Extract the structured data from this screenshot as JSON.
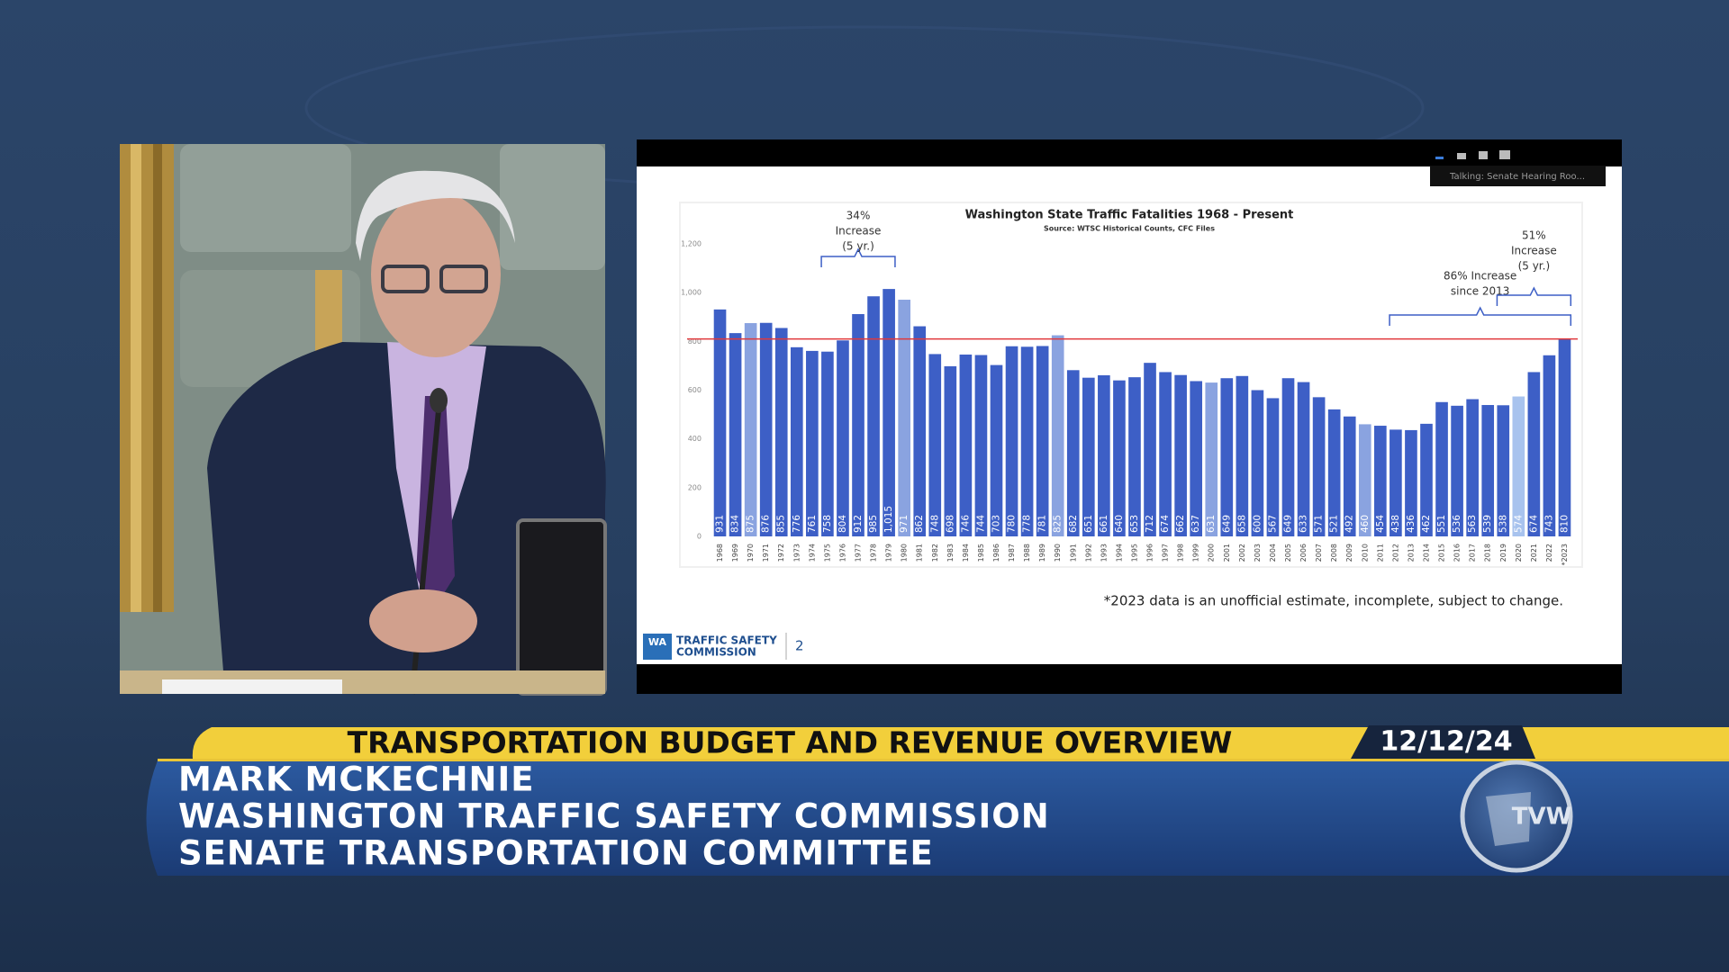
{
  "chart_data": {
    "type": "bar",
    "title": "Washington State Traffic Fatalities 1968 - Present",
    "subtitle": "Source: WTSC Historical Counts, CFC Files",
    "categories": [
      "1968",
      "1969",
      "1970",
      "1971",
      "1972",
      "1973",
      "1974",
      "1975",
      "1976",
      "1977",
      "1978",
      "1979",
      "1980",
      "1981",
      "1982",
      "1983",
      "1984",
      "1985",
      "1986",
      "1987",
      "1988",
      "1989",
      "1990",
      "1991",
      "1992",
      "1993",
      "1994",
      "1995",
      "1996",
      "1997",
      "1998",
      "1999",
      "2000",
      "2001",
      "2002",
      "2003",
      "2004",
      "2005",
      "2006",
      "2007",
      "2008",
      "2009",
      "2010",
      "2011",
      "2012",
      "2013",
      "2014",
      "2015",
      "2016",
      "2017",
      "2018",
      "2019",
      "2020",
      "2021",
      "2022",
      "*2023"
    ],
    "values": [
      931,
      834,
      875,
      876,
      855,
      776,
      761,
      758,
      804,
      912,
      985,
      1015,
      971,
      862,
      748,
      698,
      746,
      744,
      703,
      780,
      778,
      781,
      825,
      682,
      651,
      661,
      640,
      653,
      712,
      674,
      662,
      637,
      631,
      649,
      658,
      600,
      567,
      649,
      633,
      571,
      521,
      492,
      460,
      454,
      438,
      436,
      462,
      551,
      536,
      563,
      539,
      538,
      574,
      674,
      743,
      810
    ],
    "value_labels": [
      "931",
      "834",
      "875",
      "876",
      "855",
      "776",
      "761",
      "758",
      "804",
      "912",
      "985",
      "1,015",
      "971",
      "862",
      "748",
      "698",
      "746",
      "744",
      "703",
      "780",
      "778",
      "781",
      "825",
      "682",
      "651",
      "661",
      "640",
      "653",
      "712",
      "674",
      "662",
      "637",
      "631",
      "649",
      "658",
      "600",
      "567",
      "649",
      "633",
      "571",
      "521",
      "492",
      "460",
      "454",
      "438",
      "436",
      "462",
      "551",
      "536",
      "563",
      "539",
      "538",
      "574",
      "674",
      "743",
      "810"
    ],
    "colors": [
      "#3d5fc6",
      "#3d5fc6",
      "#8aa3e0",
      "#3d5fc6",
      "#3d5fc6",
      "#3d5fc6",
      "#3d5fc6",
      "#3d5fc6",
      "#3d5fc6",
      "#3d5fc6",
      "#3d5fc6",
      "#3d5fc6",
      "#8aa3e0",
      "#3d5fc6",
      "#3d5fc6",
      "#3d5fc6",
      "#3d5fc6",
      "#3d5fc6",
      "#3d5fc6",
      "#3d5fc6",
      "#3d5fc6",
      "#3d5fc6",
      "#8aa3e0",
      "#3d5fc6",
      "#3d5fc6",
      "#3d5fc6",
      "#3d5fc6",
      "#3d5fc6",
      "#3d5fc6",
      "#3d5fc6",
      "#3d5fc6",
      "#3d5fc6",
      "#8aa3e0",
      "#3d5fc6",
      "#3d5fc6",
      "#3d5fc6",
      "#3d5fc6",
      "#3d5fc6",
      "#3d5fc6",
      "#3d5fc6",
      "#3d5fc6",
      "#3d5fc6",
      "#8aa3e0",
      "#3d5fc6",
      "#3d5fc6",
      "#3d5fc6",
      "#3d5fc6",
      "#3d5fc6",
      "#3d5fc6",
      "#3d5fc6",
      "#3d5fc6",
      "#3d5fc6",
      "#a8c3ee",
      "#3d5fc6",
      "#3d5fc6",
      "#3d5fc6"
    ],
    "ylim": [
      0,
      1200
    ],
    "yticks": [
      0,
      200,
      400,
      600,
      800,
      {
        "value": 1000,
        "label": "1,000"
      },
      {
        "value": 1200,
        "label": "1,200"
      }
    ],
    "grid": false,
    "reference_line": 810,
    "reference_line_color": "#e0383b",
    "annotations": [
      {
        "lines": [
          "34%",
          "Increase",
          "(5 yr.)"
        ]
      },
      {
        "lines": [
          "86% Increase",
          "since 2013"
        ]
      },
      {
        "lines": [
          "51%",
          "Increase",
          "(5 yr.)"
        ]
      }
    ],
    "footnote": "*2023 data is an unofficial estimate, incomplete, subject to change."
  },
  "slide": {
    "logo_badge": "WA",
    "logo_line1": "TRAFFIC SAFETY",
    "logo_line2": "COMMISSION",
    "page_number": "2",
    "zoom_status": "Talking: Senate Hearing Roo..."
  },
  "lower_third": {
    "headline": "TRANSPORTATION BUDGET AND REVENUE OVERVIEW",
    "date": "12/12/24",
    "lines": [
      "MARK MCKECHNIE",
      "WASHINGTON TRAFFIC SAFETY COMMISSION",
      "SENATE TRANSPORTATION COMMITTEE"
    ],
    "network": "TVW"
  }
}
